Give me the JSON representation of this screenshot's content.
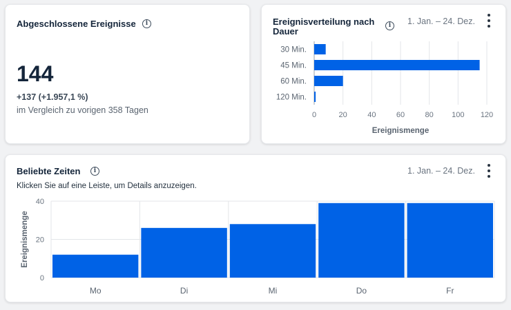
{
  "card_total": {
    "title": "Abgeschlossene Ereignisse",
    "value": "144",
    "delta": "+137 (+1.957,1 %)",
    "comparison": "im Vergleich zu vorigen 358 Tagen"
  },
  "card_duration": {
    "title_line1": "Ereignisverteilung nach",
    "title_line2": "Dauer",
    "date_range": "1. Jan. – 24. Dez."
  },
  "card_times": {
    "title": "Beliebte Zeiten",
    "subtitle": "Klicken Sie auf eine Leiste, um Details anzuzeigen.",
    "date_range": "1. Jan. – 24. Dez."
  },
  "icons": {
    "info": "info-icon",
    "menu": "kebab-menu-icon"
  },
  "colors": {
    "bar": "#0062e6",
    "grid": "#e3e5e8",
    "text": "#14253a"
  },
  "chart_data": [
    {
      "type": "bar",
      "orientation": "horizontal",
      "categories": [
        "30 Min.",
        "45 Min.",
        "60 Min.",
        "120 Min."
      ],
      "values": [
        8,
        115,
        20,
        1
      ],
      "xlabel": "Ereignismenge",
      "xlim": [
        0,
        120
      ],
      "xticks": [
        0,
        20,
        40,
        60,
        80,
        100,
        120
      ],
      "grid": true
    },
    {
      "type": "bar",
      "categories": [
        "Mo",
        "Di",
        "Mi",
        "Do",
        "Fr"
      ],
      "values": [
        12,
        26,
        28,
        39,
        39
      ],
      "ylabel": "Ereignismenge",
      "ylim": [
        0,
        40
      ],
      "yticks": [
        0,
        20,
        40
      ],
      "grid": true
    }
  ]
}
